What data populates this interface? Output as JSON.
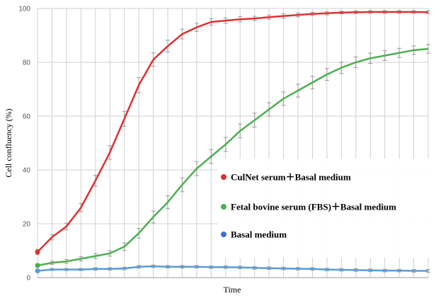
{
  "chart_data": {
    "type": "line",
    "title": "",
    "xlabel": "Time",
    "ylabel": "Cell confluency (%)",
    "ylim": [
      0,
      100
    ],
    "yticks": [
      0,
      20,
      40,
      60,
      80,
      100
    ],
    "x": [
      1,
      2,
      3,
      4,
      5,
      6,
      7,
      8,
      9,
      10,
      11,
      12,
      13,
      14,
      15,
      16,
      17,
      18,
      19,
      20,
      21,
      22,
      23,
      24,
      25,
      26,
      27,
      28
    ],
    "xlim": [
      1,
      28
    ],
    "grid": "on",
    "legend_placement": "bottom-right",
    "series": [
      {
        "name": "CulNet serum＋Basal medium",
        "color": "#e03030",
        "values": [
          9.5,
          15,
          19,
          26,
          36,
          46.5,
          59,
          71.5,
          81,
          86,
          90.5,
          93,
          95,
          95.5,
          96,
          96.3,
          96.8,
          97.2,
          97.6,
          98,
          98.2,
          98.5,
          98.6,
          98.7,
          98.7,
          98.7,
          98.7,
          98.6
        ],
        "errors": [
          1,
          1,
          1.2,
          1.5,
          2,
          2.5,
          2.8,
          2.8,
          2.5,
          2.2,
          1.8,
          1.5,
          1.2,
          1,
          1,
          0.8,
          0.8,
          0.8,
          0.7,
          0.6,
          0.6,
          0.5,
          0.5,
          0.5,
          0.5,
          0.5,
          0.5,
          0.5
        ]
      },
      {
        "name": "Fetal bovine serum (FBS)＋Basal medium",
        "color": "#4caf50",
        "values": [
          4.5,
          5.5,
          6,
          7,
          8,
          9,
          11.5,
          16.5,
          22.5,
          28,
          34.5,
          40.5,
          45,
          49.5,
          54.5,
          58.5,
          62.5,
          66.5,
          69.5,
          72.5,
          75.5,
          78,
          80,
          81.5,
          82.5,
          83.5,
          84.5,
          85
        ],
        "errors": [
          0.6,
          0.6,
          0.7,
          0.8,
          0.9,
          1,
          1.4,
          1.8,
          2.2,
          2.4,
          2.6,
          2.6,
          2.6,
          2.6,
          2.6,
          2.6,
          2.5,
          2.5,
          2.4,
          2.3,
          2.2,
          2.1,
          2,
          1.9,
          1.8,
          1.7,
          1.6,
          1.6
        ]
      },
      {
        "name": "Basal medium",
        "color": "#5b9bd5",
        "values": [
          2.5,
          3,
          3,
          3,
          3.2,
          3.2,
          3.4,
          4,
          4.2,
          4,
          4,
          4,
          3.9,
          3.9,
          3.8,
          3.6,
          3.5,
          3.4,
          3.3,
          3.2,
          3,
          2.9,
          2.8,
          2.7,
          2.6,
          2.6,
          2.5,
          2.5
        ],
        "errors": [
          0.4,
          0.4,
          0.4,
          0.4,
          0.5,
          0.5,
          0.5,
          0.5,
          0.5,
          0.5,
          0.5,
          0.5,
          0.5,
          0.5,
          0.5,
          0.5,
          0.5,
          0.5,
          0.5,
          0.5,
          0.5,
          0.5,
          0.5,
          0.5,
          0.5,
          0.5,
          0.5,
          0.5
        ]
      }
    ],
    "legend": {
      "items": [
        {
          "label": "CulNet serum＋Basal medium",
          "color": "#e03030"
        },
        {
          "label": "Fetal bovine serum (FBS)＋Basal medium",
          "color": "#4caf50"
        },
        {
          "label": "Basal medium",
          "color": "#3a6fd8"
        }
      ]
    }
  }
}
